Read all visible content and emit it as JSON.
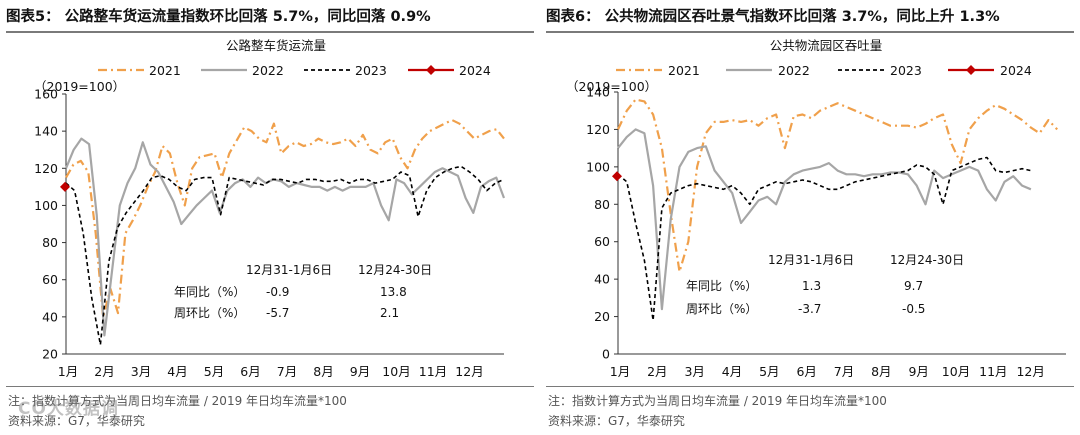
{
  "watermark": "CO大数据调",
  "charts": [
    {
      "header_label": "图表5：",
      "header_title": "公路整车货运流量指数环比回落 5.7%，同比回落 0.9%",
      "note": "注：指数计算方式为当周日均车流量 / 2019 年日均车流量*100",
      "source": "资料来源：G7，华泰研究"
    },
    {
      "header_label": "图表6：",
      "header_title": "公共物流园区吞吐景气指数环比回落 3.7%，同比上升 1.3%",
      "note": "注：指数计算方式为当周日均车流量 / 2019 年日均车流量*100",
      "source": "资料来源：G7，华泰研究"
    }
  ],
  "colors": {
    "s2021": "#f0a04b",
    "s2022": "#a6a6a6",
    "s2023": "#000000",
    "s2024": "#c00000"
  },
  "chart_data": [
    {
      "type": "line",
      "title": "公路整车货运流量",
      "unit_label": "（2019=100）",
      "ylim": [
        20,
        160
      ],
      "yticks": [
        20,
        40,
        60,
        80,
        100,
        120,
        140,
        160
      ],
      "xlabels": [
        "1月",
        "2月",
        "3月",
        "4月",
        "5月",
        "6月",
        "7月",
        "8月",
        "9月",
        "10月",
        "11月",
        "12月"
      ],
      "series": [
        {
          "name": "2021",
          "values": [
            115,
            122,
            124,
            118,
            85,
            40,
            55,
            42,
            85,
            92,
            100,
            110,
            118,
            132,
            128,
            112,
            100,
            120,
            126,
            127,
            128,
            115,
            128,
            135,
            142,
            140,
            136,
            134,
            144,
            128,
            132,
            134,
            132,
            133,
            136,
            134,
            133,
            134,
            136,
            132,
            138,
            130,
            128,
            134,
            136,
            126,
            120,
            130,
            136,
            140,
            142,
            144,
            146,
            144,
            140,
            136,
            138,
            140,
            141,
            136
          ]
        },
        {
          "name": "2022",
          "values": [
            120,
            130,
            136,
            133,
            95,
            30,
            65,
            100,
            112,
            120,
            134,
            122,
            118,
            110,
            102,
            90,
            95,
            100,
            104,
            108,
            96,
            108,
            112,
            114,
            110,
            115,
            112,
            114,
            113,
            110,
            112,
            111,
            110,
            110,
            108,
            110,
            108,
            110,
            110,
            110,
            112,
            100,
            92,
            114,
            112,
            106,
            110,
            114,
            118,
            120,
            118,
            116,
            104,
            96,
            110,
            113,
            115,
            104
          ]
        },
        {
          "name": "2023",
          "values": [
            112,
            108,
            85,
            50,
            25,
            70,
            88,
            96,
            102,
            108,
            115,
            116,
            114,
            110,
            108,
            114,
            115,
            115,
            95,
            115,
            114,
            113,
            112,
            111,
            114,
            114,
            113,
            112,
            114,
            114,
            113,
            113,
            114,
            112,
            114,
            114,
            112,
            113,
            114,
            118,
            116,
            94,
            108,
            115,
            118,
            120,
            121,
            118,
            114,
            108,
            112,
            114
          ]
        },
        {
          "name": "2024",
          "values": [
            110
          ]
        }
      ],
      "table": {
        "col1": "12月31-1月6日",
        "col2": "12月24-30日",
        "rows": [
          {
            "label": "年同比（%）",
            "v1": "-0.9",
            "v2": "13.8"
          },
          {
            "label": "周环比（%）",
            "v1": "-5.7",
            "v2": "2.1"
          }
        ]
      }
    },
    {
      "type": "line",
      "title": "公共物流园区吞吐量",
      "unit_label": "（2019=100）",
      "ylim": [
        0,
        140
      ],
      "yticks": [
        0,
        20,
        40,
        60,
        80,
        100,
        120,
        140
      ],
      "xlabels": [
        "1月",
        "2月",
        "3月",
        "4月",
        "5月",
        "6月",
        "7月",
        "8月",
        "9月",
        "10月",
        "11月",
        "12月"
      ],
      "series": [
        {
          "name": "2021",
          "values": [
            120,
            130,
            136,
            135,
            128,
            110,
            75,
            44,
            60,
            100,
            118,
            124,
            124,
            125,
            124,
            125,
            122,
            126,
            128,
            110,
            127,
            128,
            126,
            130,
            132,
            134,
            132,
            130,
            128,
            126,
            124,
            122,
            122,
            122,
            121,
            123,
            126,
            128,
            112,
            102,
            120,
            126,
            130,
            133,
            131,
            128,
            125,
            121,
            118,
            125,
            120
          ]
        },
        {
          "name": "2022",
          "values": [
            110,
            116,
            120,
            118,
            90,
            24,
            72,
            100,
            108,
            110,
            111,
            98,
            92,
            86,
            70,
            76,
            82,
            84,
            80,
            92,
            96,
            98,
            99,
            100,
            102,
            98,
            96,
            96,
            95,
            96,
            96,
            97,
            97,
            96,
            90,
            80,
            98,
            94,
            96,
            98,
            100,
            98,
            88,
            82,
            92,
            95,
            90,
            88
          ]
        },
        {
          "name": "2023",
          "values": [
            96,
            92,
            70,
            50,
            18,
            78,
            86,
            88,
            90,
            91,
            90,
            89,
            88,
            90,
            86,
            80,
            88,
            90,
            92,
            91,
            92,
            93,
            92,
            90,
            88,
            88,
            90,
            92,
            93,
            94,
            95,
            96,
            97,
            98,
            101,
            100,
            96,
            80,
            98,
            100,
            102,
            104,
            105,
            98,
            97,
            98,
            99,
            98
          ]
        },
        {
          "name": "2024",
          "values": [
            95
          ]
        }
      ],
      "table": {
        "col1": "12月31-1月6日",
        "col2": "12月24-30日",
        "rows": [
          {
            "label": "年同比（%）",
            "v1": "1.3",
            "v2": "9.7"
          },
          {
            "label": "周环比（%）",
            "v1": "-3.7",
            "v2": "-0.5"
          }
        ]
      }
    }
  ]
}
